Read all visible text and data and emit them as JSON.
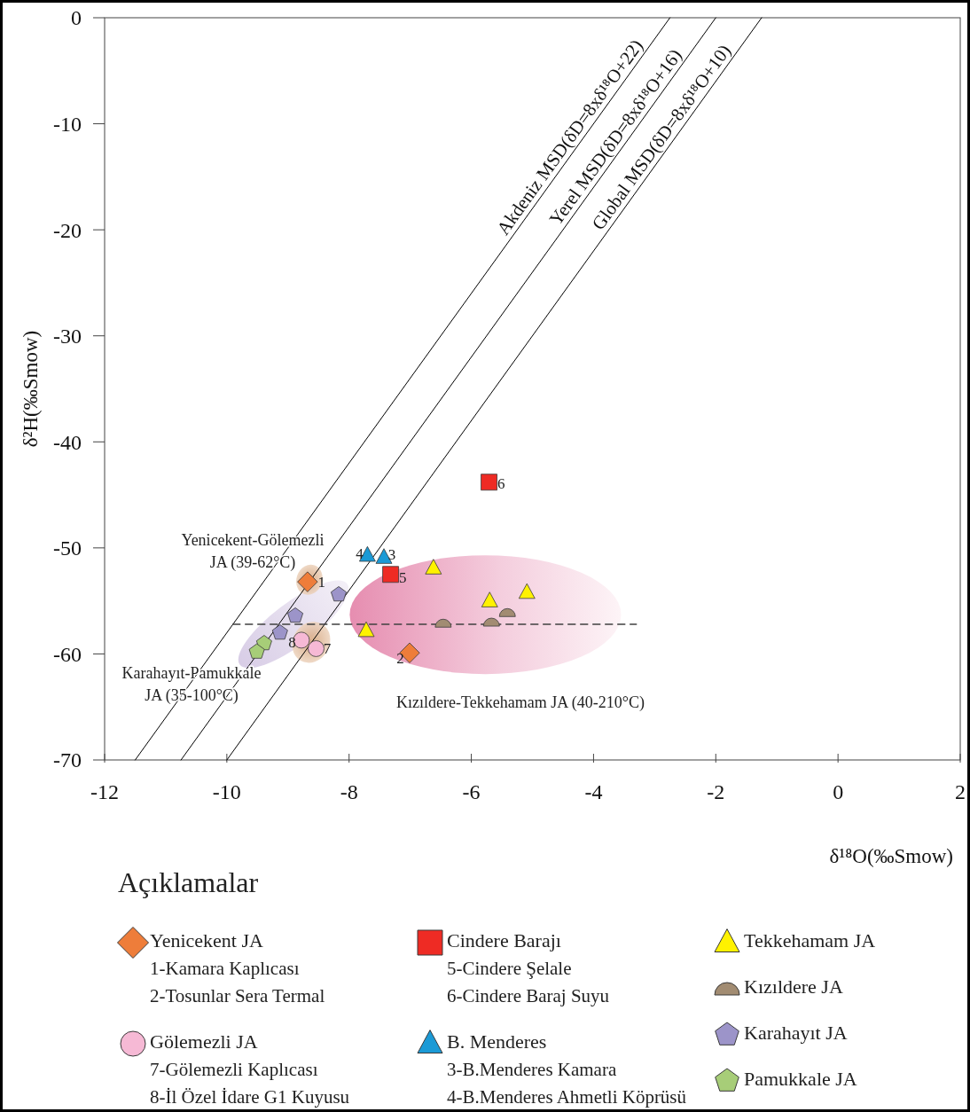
{
  "chart_data": {
    "type": "scatter",
    "xlabel": "δ¹⁸O(‰Smow)",
    "ylabel": "δ²H(‰Smow)",
    "xlim": [
      -12,
      2
    ],
    "ylim": [
      -70,
      0
    ],
    "xticks": [
      -12,
      -10,
      -8,
      -6,
      -4,
      -2,
      0,
      2
    ],
    "yticks": [
      -70,
      -60,
      -50,
      -40,
      -30,
      -20,
      -10,
      0
    ],
    "legend": "bottom",
    "legend_title": "Açıklamalar",
    "series": [
      {
        "name": "Yenicekent JA",
        "marker": "diamond",
        "color": "#ee7d3a",
        "x": [
          -8.68,
          -7.01
        ],
        "values": [
          -53.2,
          -59.9
        ]
      },
      {
        "name": "Gölemezli JA",
        "marker": "circle",
        "color": "#f6b9d5",
        "x": [
          -8.54,
          -8.78
        ],
        "values": [
          -59.5,
          -58.7
        ]
      },
      {
        "name": "Cindere Barajı",
        "marker": "square",
        "color": "#ee2b24",
        "x": [
          -7.32,
          -5.71
        ],
        "values": [
          -52.5,
          -43.8
        ]
      },
      {
        "name": "B. Menderes",
        "marker": "triangle",
        "color": "#1b9ad6",
        "x": [
          -7.43,
          -7.7
        ],
        "values": [
          -50.9,
          -50.7
        ]
      },
      {
        "name": "Tekkehamam JA",
        "marker": "triangle",
        "color": "#fff200",
        "x": [
          -6.62,
          -5.7,
          -5.09,
          -7.72
        ],
        "values": [
          -51.9,
          -55.0,
          -54.2,
          -57.8
        ]
      },
      {
        "name": "Kızıldere JA",
        "marker": "semicircle",
        "color": "#a28c72",
        "x": [
          -6.46,
          -5.67,
          -5.41
        ],
        "values": [
          -57.1,
          -57.0,
          -56.1
        ]
      },
      {
        "name": "Karahayıt JA",
        "color": "#9c94c9",
        "x": [
          -8.17,
          -8.88,
          -9.13
        ],
        "values": [
          -54.4,
          -56.4,
          -58.0
        ]
      },
      {
        "name": "Pamukkale JA",
        "color": "#a7cd78",
        "x": [
          -9.39,
          -9.51
        ],
        "values": [
          -59.0,
          -59.8
        ]
      },
      {
        "name": "Akdeniz MSD(δD=8xδ¹⁸O+22)",
        "type": "line",
        "color": "#000000",
        "x": [
          -11.5,
          -2.75
        ],
        "values": [
          -70,
          0
        ]
      },
      {
        "name": "Yerel MSD(δD=8xδ¹⁸O+16)",
        "type": "line",
        "color": "#000000",
        "x": [
          -10.75,
          -2
        ],
        "values": [
          -70,
          0
        ]
      },
      {
        "name": "Global MSD(δD=8xδ¹⁸O+10)",
        "type": "line",
        "color": "#000000",
        "x": [
          -10,
          -1.25
        ],
        "values": [
          -70,
          0
        ]
      },
      {
        "type": "line",
        "line_style": "dashed",
        "color": "#404040",
        "x": [
          -9.9,
          -3.3
        ],
        "values": [
          -57.2,
          -57.2
        ]
      }
    ],
    "annotations": [
      {
        "text": "1",
        "x": -8.45,
        "y": -53.2
      },
      {
        "text": "2",
        "x": -7.16,
        "y": -60.4
      },
      {
        "text": "3",
        "x": -7.3,
        "y": -50.6
      },
      {
        "text": "4",
        "x": -7.83,
        "y": -50.5
      },
      {
        "text": "5",
        "x": -7.12,
        "y": -52.8
      },
      {
        "text": "6",
        "x": -5.51,
        "y": -43.9
      },
      {
        "text": "7",
        "x": -8.36,
        "y": -59.5
      },
      {
        "text": "8",
        "x": -8.93,
        "y": -58.9
      },
      "1-Kamara Kaplıcası",
      "2-Tosunlar Sera Termal",
      "7-Gölemezli Kaplıcası",
      "8-İl Özel İdare G1 Kuyusu",
      "5-Cindere Şelale",
      "6-Cindere Baraj Suyu",
      "3-B.Menderes Kamara",
      "4-B.Menderes Ahmetli Köprüsü",
      "Yenicekent-Gölemezli",
      "JA (39-62°C)",
      "Karahayıt-Pamukkale",
      "JA (35-100°C)",
      "Kızıldere-Tekkehamam JA (40-210°C)"
    ]
  }
}
